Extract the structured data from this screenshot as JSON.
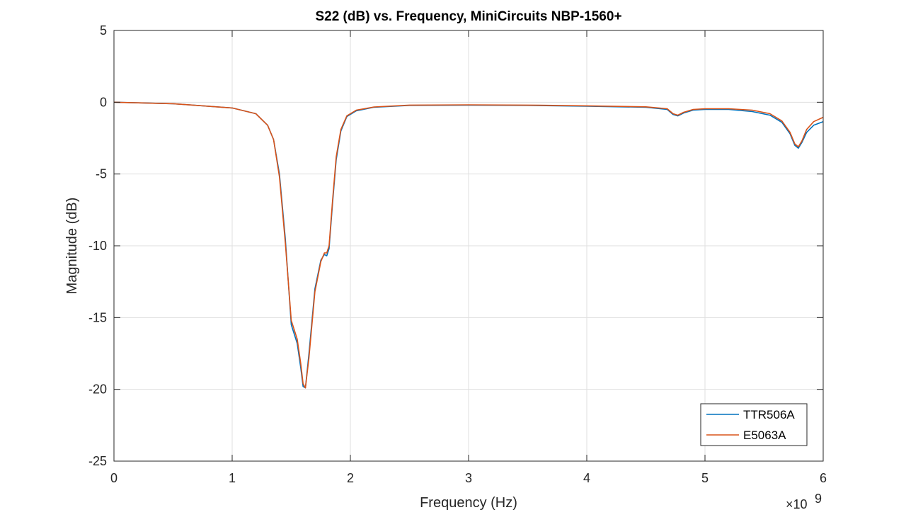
{
  "chart_data": {
    "type": "line",
    "title": "S22 (dB) vs. Frequency, MiniCircuits NBP-1560+",
    "xlabel": "Frequency (Hz)",
    "ylabel": "Magnitude (dB)",
    "x_exponent_label": "×10",
    "x_exponent_power": "9",
    "xlim": [
      0,
      6
    ],
    "ylim": [
      -25,
      5
    ],
    "x_scale_factor": 1000000000.0,
    "xticks": [
      0,
      1,
      2,
      3,
      4,
      5,
      6
    ],
    "xtick_labels": [
      "0",
      "1",
      "2",
      "3",
      "4",
      "5",
      "6"
    ],
    "yticks": [
      5,
      0,
      -5,
      -10,
      -15,
      -20,
      -25
    ],
    "ytick_labels": [
      "5",
      "0",
      "-5",
      "-10",
      "-15",
      "-20",
      "-25"
    ],
    "grid": true,
    "legend_position": "bottom-right",
    "series": [
      {
        "name": "TTR506A",
        "color": "#0072BD",
        "x": [
          0,
          0.5,
          1.0,
          1.2,
          1.3,
          1.35,
          1.4,
          1.45,
          1.5,
          1.55,
          1.58,
          1.6,
          1.62,
          1.65,
          1.7,
          1.75,
          1.78,
          1.8,
          1.82,
          1.85,
          1.88,
          1.92,
          1.97,
          2.05,
          2.2,
          2.5,
          3.0,
          3.5,
          4.0,
          4.5,
          4.68,
          4.73,
          4.77,
          4.82,
          4.9,
          5.0,
          5.2,
          5.4,
          5.55,
          5.65,
          5.72,
          5.76,
          5.79,
          5.82,
          5.86,
          5.92,
          6.0
        ],
        "y": [
          0,
          -0.1,
          -0.4,
          -0.8,
          -1.6,
          -2.6,
          -5.0,
          -9.5,
          -15.5,
          -16.8,
          -18.5,
          -19.8,
          -19.9,
          -17.5,
          -13.0,
          -11.0,
          -10.6,
          -10.7,
          -10.2,
          -7.0,
          -4.0,
          -2.0,
          -1.0,
          -0.6,
          -0.35,
          -0.22,
          -0.2,
          -0.22,
          -0.28,
          -0.35,
          -0.5,
          -0.85,
          -0.95,
          -0.75,
          -0.55,
          -0.5,
          -0.5,
          -0.65,
          -0.9,
          -1.4,
          -2.2,
          -3.0,
          -3.2,
          -2.8,
          -2.1,
          -1.6,
          -1.35
        ]
      },
      {
        "name": "E5063A",
        "color": "#D95319",
        "x": [
          0,
          0.5,
          1.0,
          1.2,
          1.3,
          1.35,
          1.4,
          1.45,
          1.5,
          1.55,
          1.58,
          1.6,
          1.62,
          1.65,
          1.7,
          1.75,
          1.78,
          1.8,
          1.82,
          1.85,
          1.88,
          1.92,
          1.97,
          2.05,
          2.2,
          2.5,
          3.0,
          3.5,
          4.0,
          4.5,
          4.68,
          4.73,
          4.77,
          4.82,
          4.9,
          5.0,
          5.2,
          5.4,
          5.55,
          5.65,
          5.72,
          5.76,
          5.79,
          5.82,
          5.86,
          5.92,
          6.0
        ],
        "y": [
          0,
          -0.1,
          -0.4,
          -0.8,
          -1.6,
          -2.6,
          -5.2,
          -9.8,
          -15.2,
          -16.5,
          -18.2,
          -19.6,
          -19.9,
          -17.8,
          -13.2,
          -11.1,
          -10.5,
          -10.5,
          -10.0,
          -6.8,
          -3.8,
          -1.9,
          -0.95,
          -0.55,
          -0.33,
          -0.2,
          -0.18,
          -0.2,
          -0.25,
          -0.32,
          -0.45,
          -0.8,
          -0.9,
          -0.7,
          -0.5,
          -0.45,
          -0.45,
          -0.55,
          -0.8,
          -1.3,
          -2.1,
          -2.9,
          -3.1,
          -2.7,
          -1.9,
          -1.35,
          -1.05
        ]
      }
    ]
  }
}
